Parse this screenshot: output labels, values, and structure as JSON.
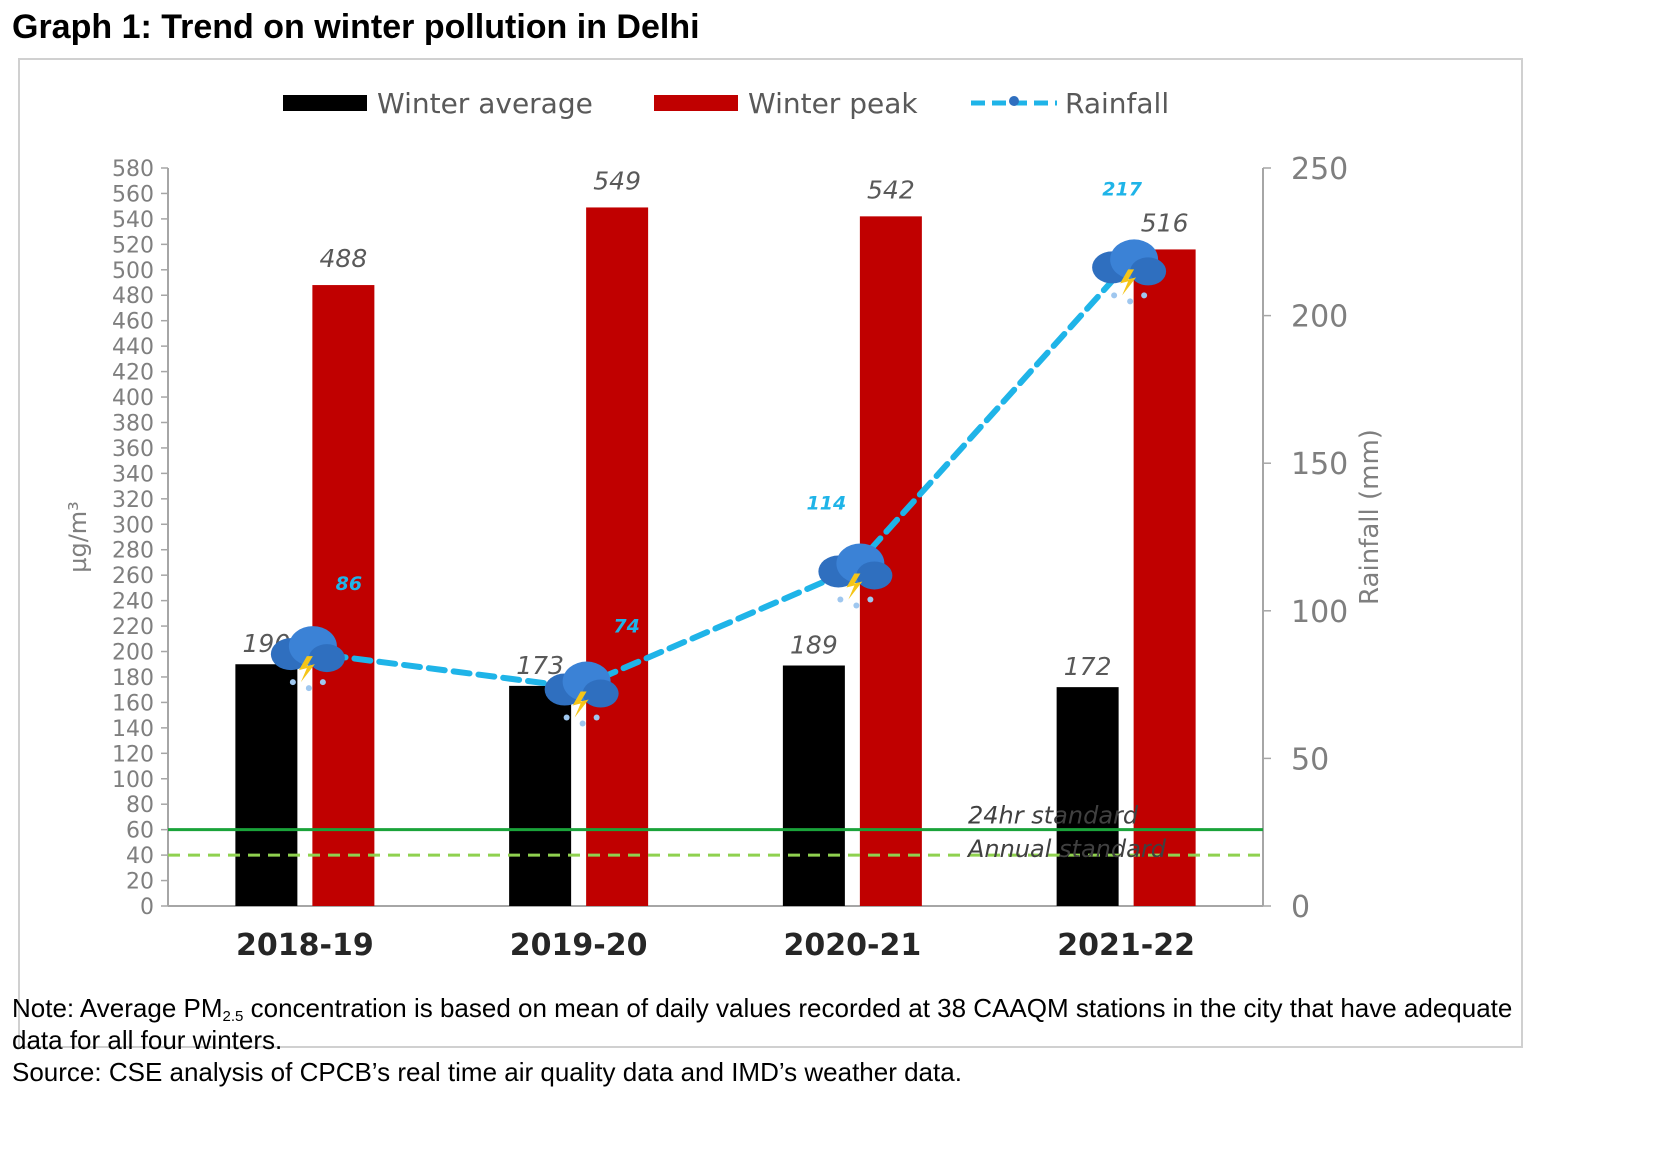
{
  "page": {
    "heading": "Graph 1: Trend on winter pollution in Delhi",
    "note_line1_prefix": "Note: Average PM",
    "note_line1_sub": "2.5",
    "note_line1_suffix": " concentration is based on mean of daily values recorded at 38 CAAQM stations in the city that have adequate",
    "note_line2": "data for all four winters.",
    "source": "Source: CSE analysis of CPCB’s real time air quality data and IMD’s weather data."
  },
  "chart_data": {
    "type": "bar",
    "categories": [
      "2018-19",
      "2019-20",
      "2020-21",
      "2021-22"
    ],
    "series": [
      {
        "name": "Winter average",
        "type": "bar",
        "axis": "left",
        "color": "#000000",
        "values": [
          190,
          173,
          189,
          172
        ]
      },
      {
        "name": "Winter peak",
        "type": "bar",
        "axis": "left",
        "color": "#c00000",
        "values": [
          488,
          549,
          542,
          516
        ]
      },
      {
        "name": "Rainfall",
        "type": "line",
        "axis": "right",
        "color": "#1fb4e8",
        "values": [
          86,
          74,
          114,
          217
        ]
      }
    ],
    "ylabel": "µg/m³",
    "y2label": "Rainfall (mm)",
    "ylim": [
      0,
      580
    ],
    "y_ticks": [
      0,
      20,
      40,
      60,
      80,
      100,
      120,
      140,
      160,
      180,
      200,
      220,
      240,
      260,
      280,
      300,
      320,
      340,
      360,
      380,
      400,
      420,
      440,
      460,
      480,
      500,
      520,
      540,
      560,
      580
    ],
    "y2lim": [
      0,
      250
    ],
    "y2_ticks": [
      0,
      50,
      100,
      150,
      200,
      250
    ],
    "reference_lines": [
      {
        "label": "24hr standard",
        "value": 60,
        "style": "solid",
        "color": "#1aa33a"
      },
      {
        "label": "Annual standard",
        "value": 40,
        "style": "dashed",
        "color": "#8fd14f"
      }
    ],
    "legend_position": "top",
    "marker_icon": "rain-cloud-icon",
    "grid": false
  }
}
